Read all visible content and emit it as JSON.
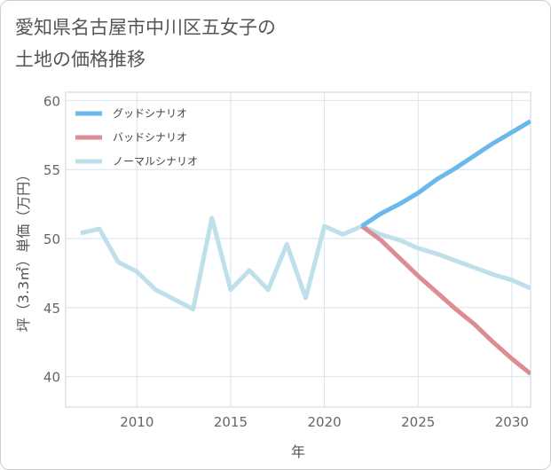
{
  "title_lines": [
    "愛知県名古屋市中川区五女子の",
    "土地の価格推移"
  ],
  "chart_data": {
    "type": "line",
    "title": "愛知県名古屋市中川区五女子の土地の価格推移",
    "xlabel": "年",
    "ylabel": "坪（3.3㎡）単価（万円）",
    "xlim": [
      2006.2,
      2031
    ],
    "ylim": [
      37.8,
      60.6
    ],
    "xticks": [
      2010,
      2015,
      2020,
      2025,
      2030
    ],
    "yticks": [
      40,
      45,
      50,
      55,
      60
    ],
    "grid": true,
    "legend_position": "top-left",
    "series": [
      {
        "name": "グッドシナリオ",
        "color": "#6bb8ea",
        "x": [
          2022,
          2023,
          2024,
          2025,
          2026,
          2027,
          2028,
          2029,
          2030,
          2031
        ],
        "y": [
          50.9,
          51.8,
          52.5,
          53.3,
          54.3,
          55.1,
          56.0,
          56.9,
          57.7,
          58.5
        ]
      },
      {
        "name": "バッドシナリオ",
        "color": "#dc8c93",
        "x": [
          2022,
          2023,
          2024,
          2025,
          2026,
          2027,
          2028,
          2029,
          2030,
          2031
        ],
        "y": [
          50.9,
          49.9,
          48.6,
          47.3,
          46.1,
          44.9,
          43.8,
          42.5,
          41.3,
          40.2
        ]
      },
      {
        "name": "ノーマルシナリオ",
        "color": "#bfdfeb",
        "x": [
          2007,
          2008,
          2009,
          2010,
          2011,
          2012,
          2013,
          2014,
          2015,
          2016,
          2017,
          2018,
          2019,
          2020,
          2021,
          2022,
          2023,
          2024,
          2025,
          2026,
          2027,
          2028,
          2029,
          2030,
          2031
        ],
        "y": [
          50.4,
          50.7,
          48.3,
          47.6,
          46.3,
          45.6,
          44.9,
          51.5,
          46.3,
          47.7,
          46.3,
          49.6,
          45.7,
          50.9,
          50.3,
          50.9,
          50.3,
          49.9,
          49.3,
          48.9,
          48.4,
          47.9,
          47.4,
          47.0,
          46.4
        ]
      }
    ]
  }
}
